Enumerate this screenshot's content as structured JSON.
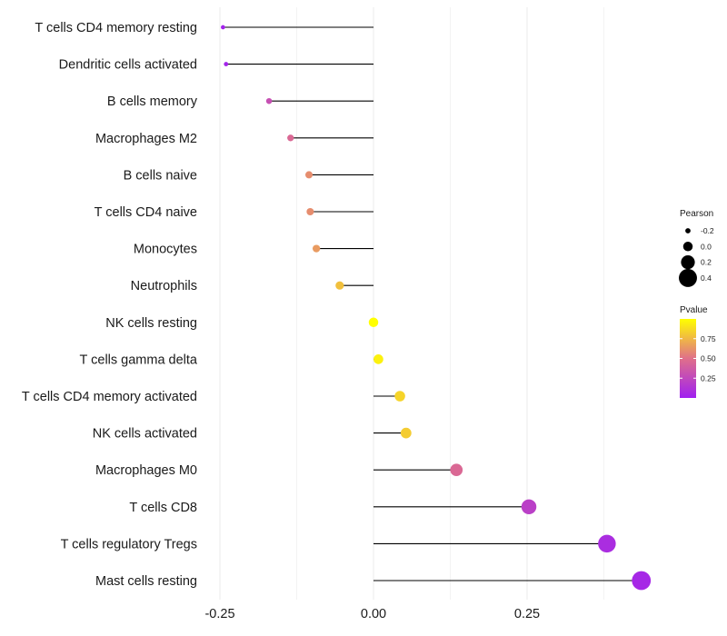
{
  "chart_data": {
    "type": "lollipop",
    "title": "",
    "xlabel": "",
    "ylabel": "",
    "xlim": [
      -0.25,
      0.44
    ],
    "xticks": [
      -0.25,
      0.0,
      0.25
    ],
    "xtick_labels": [
      "-0.25",
      "0.00",
      "0.25"
    ],
    "grid": true,
    "legend_position": "right",
    "categories": [
      "T cells CD4 memory resting",
      "Dendritic cells activated",
      "B cells memory",
      "Macrophages M2",
      "B cells naive",
      "T cells CD4 naive",
      "Monocytes",
      "Neutrophils",
      "NK cells resting",
      "T cells gamma delta",
      "T cells CD4 memory activated",
      "NK cells activated",
      "Macrophages M0",
      "T cells CD8",
      "T cells regulatory  Tregs",
      "Mast cells resting"
    ],
    "pearson": [
      -0.245,
      -0.24,
      -0.17,
      -0.135,
      -0.105,
      -0.103,
      -0.093,
      -0.055,
      0.0,
      0.008,
      0.043,
      0.053,
      0.135,
      0.253,
      0.38,
      0.436
    ],
    "pvalue": [
      0.02,
      0.03,
      0.3,
      0.45,
      0.6,
      0.6,
      0.65,
      0.78,
      1.0,
      0.95,
      0.85,
      0.82,
      0.45,
      0.2,
      0.08,
      0.05
    ],
    "size_legend": {
      "title": "Pearson",
      "breaks": [
        -0.2,
        0.0,
        0.2,
        0.4
      ],
      "labels": [
        "-0.2",
        "0.0",
        "0.2",
        "0.4"
      ]
    },
    "color_legend": {
      "title": "Pvalue",
      "range": [
        0.0,
        1.0
      ],
      "breaks": [
        0.25,
        0.5,
        0.75
      ],
      "labels": [
        "0.25",
        "0.50",
        "0.75"
      ]
    },
    "colors": {
      "low": "#a020f0",
      "mid": "#e0708a",
      "high": "#ffff00",
      "stick": "#000000",
      "grid": "#ebebeb"
    }
  }
}
